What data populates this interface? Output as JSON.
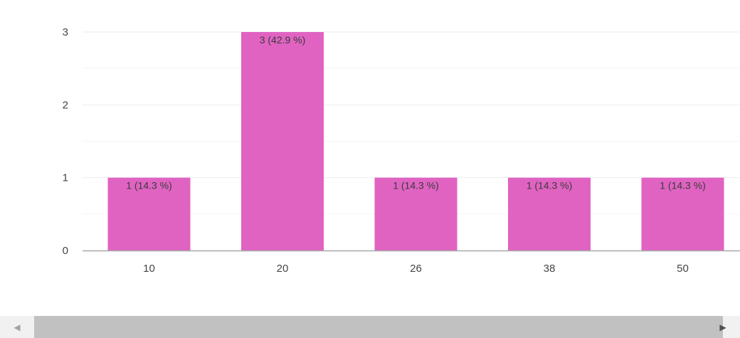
{
  "chart_data": {
    "type": "bar",
    "categories": [
      "10",
      "20",
      "26",
      "38",
      "50"
    ],
    "values": [
      1,
      3,
      1,
      1,
      1
    ],
    "data_labels": [
      "1 (14.3 %)",
      "3 (42.9 %)",
      "1 (14.3 %)",
      "1 (14.3 %)",
      "1 (14.3 %)"
    ],
    "y_ticks": [
      "0",
      "1",
      "2",
      "3"
    ],
    "ylim": [
      0,
      3
    ],
    "grid": true,
    "legend": "none",
    "title": "",
    "xlabel": "",
    "ylabel": "",
    "colors": {
      "bar": "#e063c2",
      "gridline": "#eeeeee",
      "axis": "#a8a8a8"
    }
  },
  "scrollbar": {
    "left_icon": "arrow-left-icon",
    "right_icon": "arrow-right-icon",
    "left_glyph": "◀",
    "right_glyph": "▶"
  }
}
